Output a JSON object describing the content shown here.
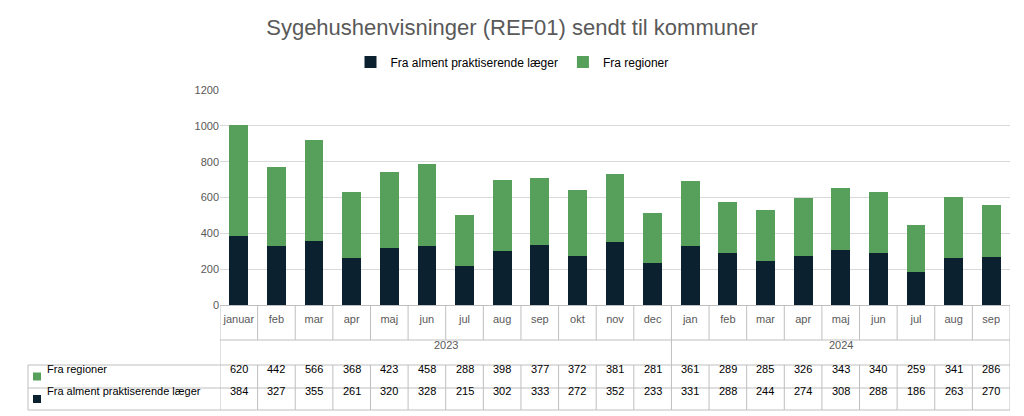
{
  "chart_data": {
    "type": "bar",
    "title": "Sygehushenvisninger (REF01) sendt til kommuner",
    "categories": [
      "januar",
      "feb",
      "mar",
      "apr",
      "maj",
      "jun",
      "jul",
      "aug",
      "sep",
      "okt",
      "nov",
      "dec",
      "jan",
      "feb",
      "mar",
      "apr",
      "maj",
      "jun",
      "jul",
      "aug",
      "sep"
    ],
    "category_groups": [
      {
        "label": "2023",
        "count": 12
      },
      {
        "label": "2024",
        "count": 9
      }
    ],
    "series": [
      {
        "name": "Fra alment praktiserende læger",
        "color": "#0b2130",
        "values": [
          384,
          327,
          355,
          261,
          320,
          328,
          215,
          302,
          333,
          272,
          352,
          233,
          331,
          288,
          244,
          274,
          308,
          288,
          186,
          263,
          270
        ]
      },
      {
        "name": "Fra regioner",
        "color": "#56a05b",
        "values": [
          620,
          442,
          566,
          368,
          423,
          458,
          288,
          398,
          377,
          372,
          381,
          281,
          361,
          289,
          285,
          326,
          343,
          340,
          259,
          341,
          286
        ]
      }
    ],
    "ylim": [
      0,
      1200
    ],
    "yticks": [
      0,
      200,
      400,
      600,
      800,
      1000,
      1200
    ],
    "stacked": true,
    "grid": true,
    "legend": "top"
  }
}
